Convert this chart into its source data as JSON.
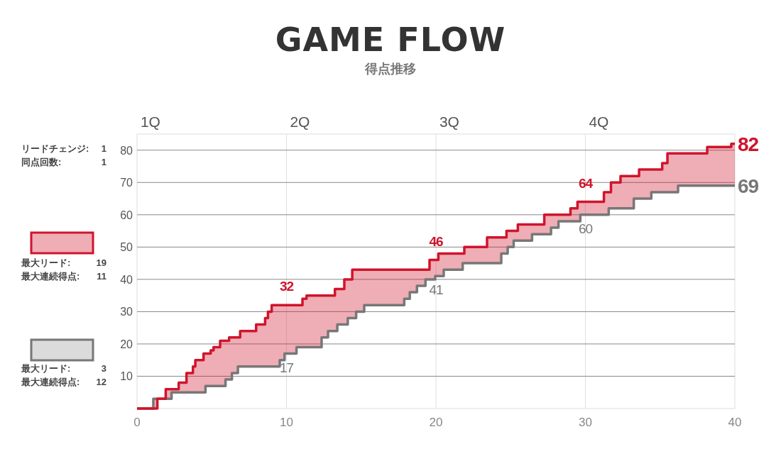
{
  "chart_data": {
    "type": "step",
    "title": "GAME FLOW",
    "subtitle": "得点推移",
    "xlim": [
      0,
      40
    ],
    "xticks": [
      0,
      10,
      20,
      30,
      40
    ],
    "ylim": [
      0,
      85
    ],
    "yticks": [
      10,
      20,
      30,
      40,
      50,
      60,
      70,
      80
    ],
    "grid": true,
    "series": [
      {
        "color": "#d0142c",
        "x": [
          0,
          1.36,
          1.92,
          2.79,
          3.31,
          3.74,
          3.9,
          4.45,
          4.93,
          5.12,
          5.56,
          6.16,
          6.9,
          7.97,
          8.57,
          8.76,
          9.01,
          11.07,
          11.34,
          13.24,
          13.87,
          14.4,
          19.57,
          20.16,
          21.9,
          23.42,
          24.72,
          25.48,
          27.25,
          29.0,
          29.47,
          31.24,
          31.71,
          32.35,
          33.59,
          35.14,
          35.49,
          38.15,
          39.76,
          40
        ],
        "values": [
          0,
          3,
          6,
          8,
          11,
          13,
          15,
          17,
          18,
          19,
          21,
          22,
          24,
          26,
          28,
          30,
          32,
          34,
          35,
          37,
          40,
          43,
          46,
          48,
          50,
          53,
          55,
          57,
          60,
          62,
          64,
          67,
          70,
          72,
          74,
          76,
          79,
          81,
          82,
          82
        ]
      },
      {
        "color": "#777777",
        "x": [
          0,
          1.09,
          2.31,
          4.58,
          5.92,
          6.35,
          6.75,
          9.55,
          9.87,
          10.67,
          12.35,
          12.78,
          13.4,
          14.1,
          14.66,
          15.2,
          17.88,
          18.25,
          18.73,
          19.3,
          19.95,
          20.52,
          21.79,
          24.37,
          24.8,
          25.2,
          26.43,
          27.7,
          28.2,
          29.66,
          31.56,
          33.24,
          34.41,
          36.2,
          40
        ],
        "values": [
          0,
          3,
          5,
          7,
          9,
          11,
          13,
          15,
          17,
          19,
          22,
          24,
          26,
          28,
          30,
          32,
          34,
          36,
          38,
          40,
          41,
          43,
          45,
          48,
          50,
          52,
          54,
          56,
          58,
          60,
          62,
          65,
          67,
          69,
          69
        ]
      }
    ],
    "annotations": [
      {
        "text": "32",
        "x": 10,
        "y": 32
      },
      {
        "text": "17",
        "x": 10,
        "y": 17
      },
      {
        "text": "46",
        "x": 20,
        "y": 46
      },
      {
        "text": "41",
        "x": 20,
        "y": 41
      },
      {
        "text": "64",
        "x": 30,
        "y": 64
      },
      {
        "text": "60",
        "x": 30,
        "y": 60
      },
      {
        "text": "82",
        "x": 40,
        "y": 82
      },
      {
        "text": "69",
        "x": 40,
        "y": 69
      },
      "1Q",
      "2Q",
      "3Q",
      "4Q",
      "リードチェンジ: 1",
      "同点回数: 1",
      "最大リード: 19",
      "最大連続得点: 11",
      "最大リード: 3",
      "最大連続得点: 12"
    ]
  }
}
